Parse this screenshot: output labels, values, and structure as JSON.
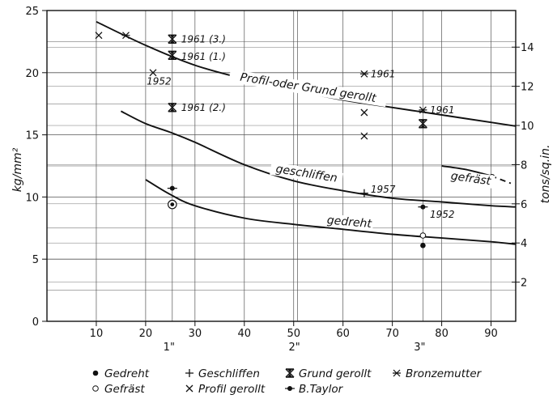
{
  "chart_data": {
    "type": "scatter",
    "x_axis": {
      "range": [
        0,
        95
      ],
      "ticks": [
        10,
        20,
        30,
        40,
        50,
        60,
        70,
        80,
        90
      ],
      "inch_labels": [
        {
          "x": 25.4,
          "label": "1\""
        },
        {
          "x": 50.8,
          "label": "2\""
        },
        {
          "x": 76.2,
          "label": "3\""
        }
      ]
    },
    "y_axis_left": {
      "label": "kg/mm²",
      "range": [
        0,
        25
      ],
      "ticks": [
        0,
        5,
        10,
        15,
        20,
        25
      ]
    },
    "y_axis_right": {
      "label": "tons/sq.in.",
      "range": [
        0,
        15.87
      ],
      "ticks": [
        2,
        4,
        6,
        8,
        10,
        12,
        14
      ]
    },
    "grid": true,
    "curves": [
      {
        "name": "Profil- oder Grund gerollt",
        "x": [
          10,
          20,
          30,
          40,
          50,
          60,
          70,
          80,
          90,
          95
        ],
        "y": [
          24.1,
          22.2,
          20.6,
          19.5,
          18.6,
          17.8,
          17.2,
          16.6,
          16.0,
          15.7
        ]
      },
      {
        "name": "geschliffen",
        "x": [
          15,
          20,
          25,
          30,
          40,
          50,
          60,
          70,
          80,
          90,
          95
        ],
        "y": [
          16.9,
          15.9,
          15.2,
          14.4,
          12.6,
          11.3,
          10.5,
          9.9,
          9.6,
          9.3,
          9.2
        ]
      },
      {
        "name": "gedreht",
        "x": [
          20,
          25,
          30,
          40,
          50,
          60,
          70,
          80,
          90,
          95
        ],
        "y": [
          11.4,
          10.2,
          9.3,
          8.3,
          7.8,
          7.4,
          7.0,
          6.7,
          6.4,
          6.2
        ]
      },
      {
        "name": "gefräst",
        "x": [
          80,
          85,
          90,
          94
        ],
        "y": [
          12.5,
          12.2,
          11.7,
          11.1
        ],
        "dash_from": 90
      }
    ],
    "points": [
      {
        "marker": "x",
        "x": 10.5,
        "y": 23.0
      },
      {
        "marker": "asterisk",
        "x": 16,
        "y": 23.0
      },
      {
        "marker": "x",
        "x": 21.5,
        "y": 20.0
      },
      {
        "marker": "grund",
        "x": 25.4,
        "y": 22.7
      },
      {
        "marker": "grund",
        "x": 25.4,
        "y": 21.4
      },
      {
        "marker": "grund",
        "x": 25.4,
        "y": 17.2
      },
      {
        "marker": "taylor",
        "x": 25.4,
        "y": 10.7
      },
      {
        "marker": "gefraest_dot",
        "x": 25.4,
        "y": 9.4
      },
      {
        "marker": "asterisk",
        "x": 64.3,
        "y": 19.9
      },
      {
        "marker": "x",
        "x": 64.3,
        "y": 16.8
      },
      {
        "marker": "x",
        "x": 64.3,
        "y": 14.9
      },
      {
        "marker": "plus",
        "x": 64.3,
        "y": 10.3
      },
      {
        "marker": "asterisk",
        "x": 76.2,
        "y": 17.0
      },
      {
        "marker": "grund",
        "x": 76.2,
        "y": 15.9
      },
      {
        "marker": "taylor",
        "x": 76.2,
        "y": 9.2
      },
      {
        "marker": "gefraest",
        "x": 76.2,
        "y": 6.9
      },
      {
        "marker": "gedreht",
        "x": 76.2,
        "y": 6.1
      },
      {
        "marker": "gefraest",
        "x": 90.2,
        "y": 11.6
      }
    ],
    "annotations": [
      {
        "text": "1961 (3.)",
        "x": 27.2,
        "y": 22.7
      },
      {
        "text": "1961 (1.)",
        "x": 27.2,
        "y": 21.3
      },
      {
        "text": "1952",
        "x": 20.2,
        "y": 19.3
      },
      {
        "text": "1961 (2.)",
        "x": 27.2,
        "y": 17.2
      },
      {
        "text": "1961",
        "x": 65.6,
        "y": 19.9
      },
      {
        "text": "1961",
        "x": 77.6,
        "y": 17.0
      },
      {
        "text": "1957",
        "x": 65.6,
        "y": 10.6
      },
      {
        "text": "1952",
        "x": 77.6,
        "y": 8.6
      }
    ],
    "curve_labels": [
      {
        "text": "Profil-oder Grund gerollt",
        "x": 52.8,
        "y": 18.5,
        "angle": 9
      },
      {
        "text": "geschliffen",
        "x": 52.5,
        "y": 11.6,
        "angle": 9
      },
      {
        "text": "gedreht",
        "x": 61.2,
        "y": 7.7,
        "angle": 5
      },
      {
        "text": "gefräst",
        "x": 85.8,
        "y": 11.2,
        "angle": 8
      }
    ],
    "legend": {
      "position": "bottom",
      "items": [
        {
          "marker": "gedreht",
          "label": "Gedreht"
        },
        {
          "marker": "plus",
          "label": "Geschliffen"
        },
        {
          "marker": "grund",
          "label": "Grund gerollt"
        },
        {
          "marker": "asterisk",
          "label": "Bronzemutter"
        },
        {
          "marker": "gefraest",
          "label": "Gefräst"
        },
        {
          "marker": "x",
          "label": "Profil gerollt"
        },
        {
          "marker": "taylor",
          "label": "B.Taylor"
        }
      ]
    }
  }
}
